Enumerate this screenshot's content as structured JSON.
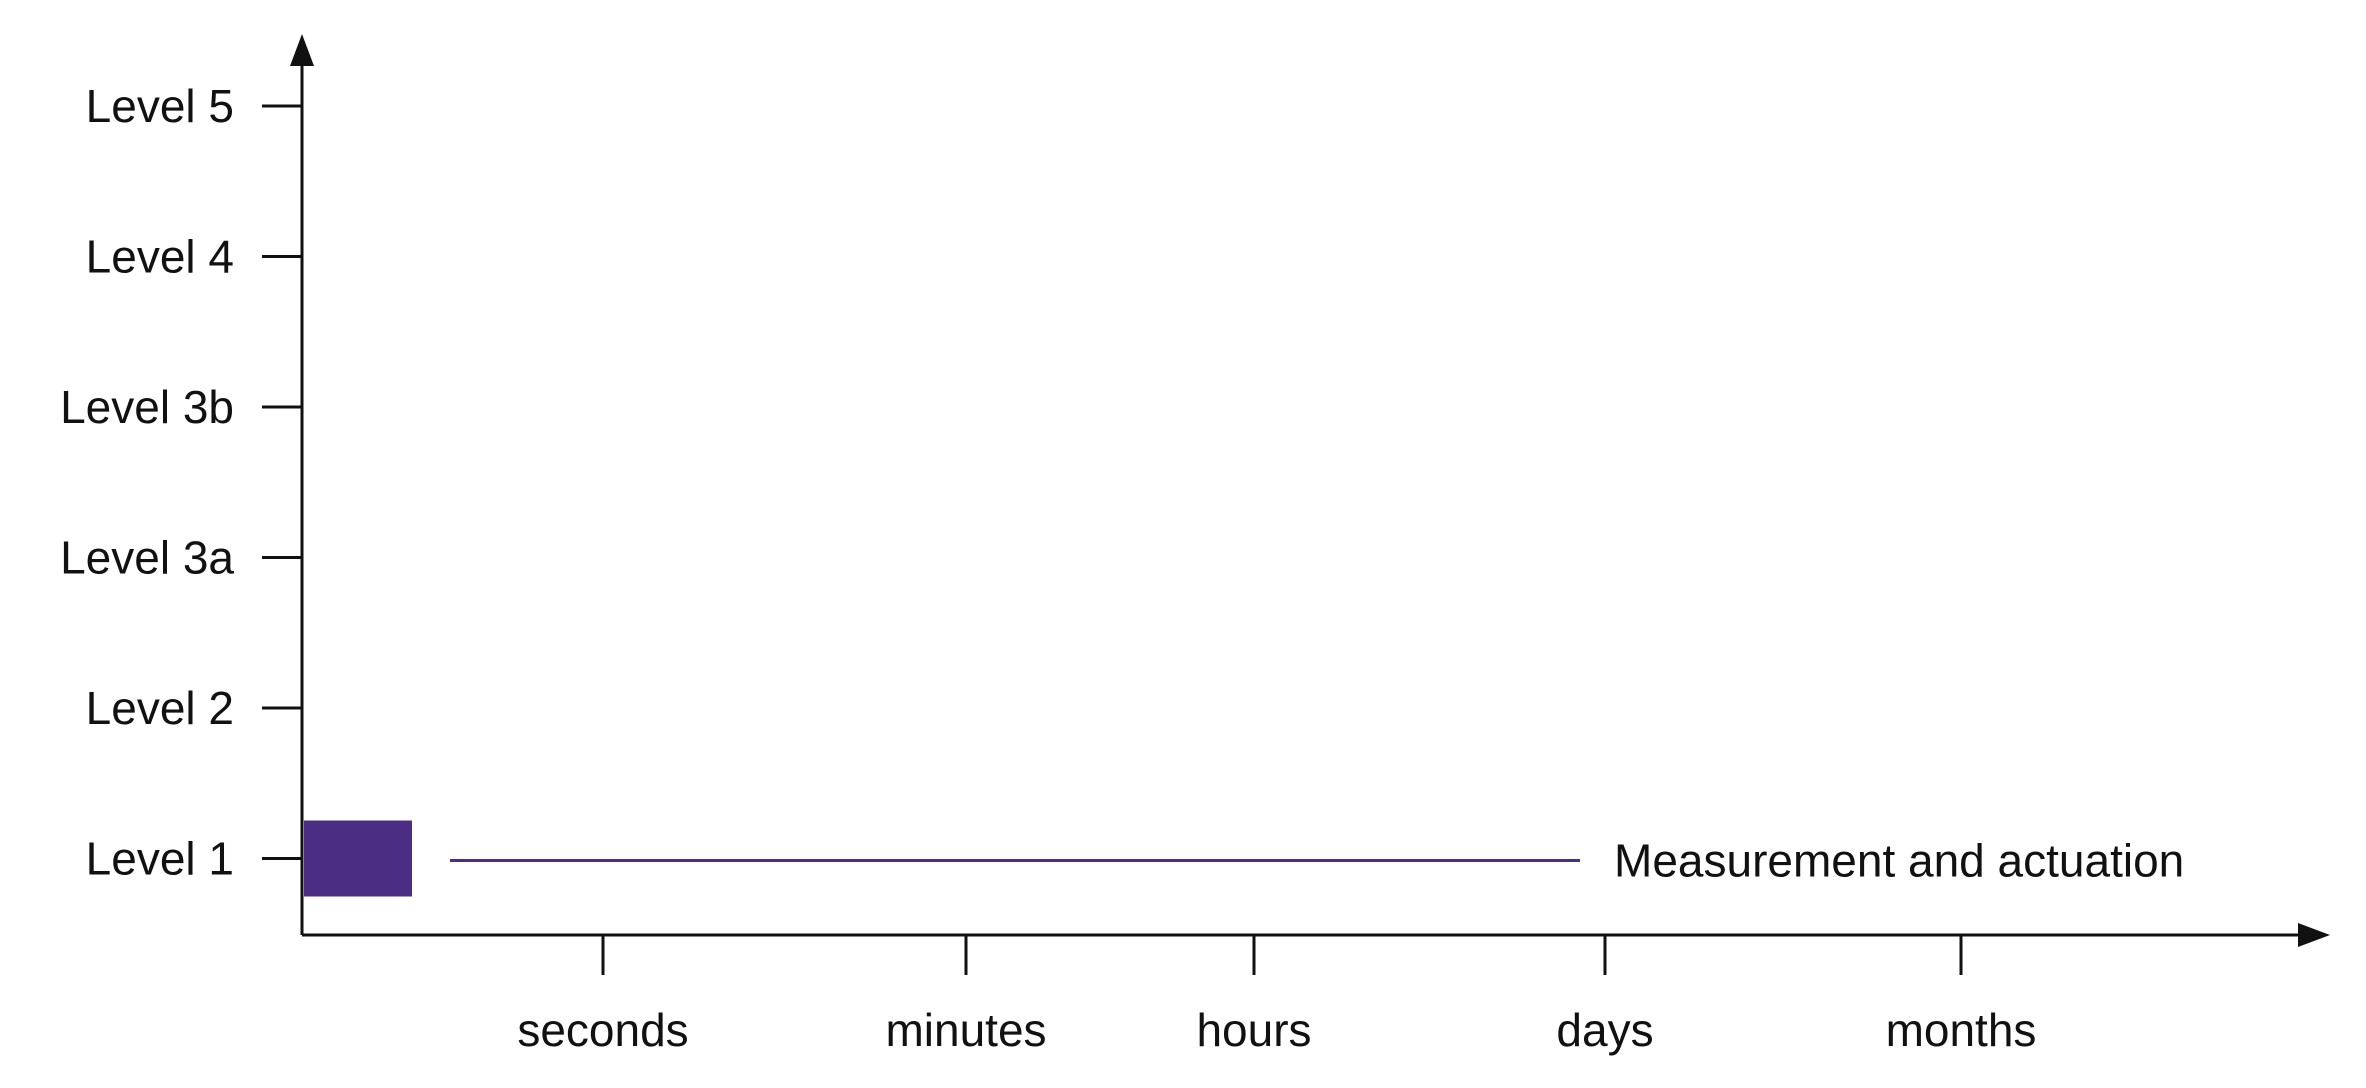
{
  "chart_data": {
    "type": "bar",
    "title": "",
    "xlabel": "",
    "ylabel": "",
    "y_categories": [
      "Level 1",
      "Level 2",
      "Level 3a",
      "Level 3b",
      "Level 4",
      "Level 5"
    ],
    "x_categories": [
      "seconds",
      "minutes",
      "hours",
      "days",
      "months"
    ],
    "grid": false,
    "legend": "none",
    "bars": [
      {
        "level": "Level 1",
        "label": "Measurement and actuation",
        "color": "#4b2e83"
      }
    ]
  }
}
